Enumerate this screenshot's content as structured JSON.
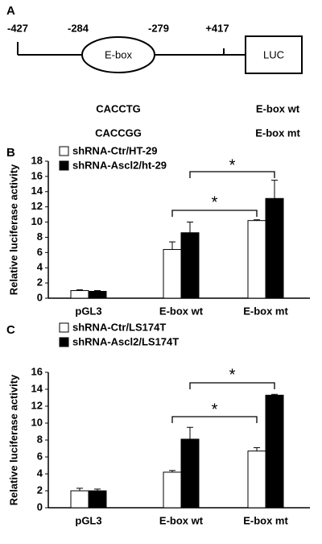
{
  "panel_a": {
    "label": "A",
    "positions": [
      "-427",
      "-284",
      "-279",
      "+417"
    ],
    "element": "E-box",
    "reporter": "LUC",
    "sequences": [
      "CACCTG",
      "CACCGG"
    ],
    "constructs": [
      "E-box wt",
      "E-box mt"
    ]
  },
  "chart_data": [
    {
      "type": "bar",
      "panel": "B",
      "y_label": "Relative luciferase activity",
      "categories": [
        "pGL3",
        "E-box wt",
        "E-box mt"
      ],
      "series": [
        {
          "name": "shRNA-Ctr/HT-29",
          "color": "#ffffff",
          "values": [
            1.0,
            6.4,
            10.2
          ],
          "errors": [
            0.1,
            1.0,
            0.1
          ]
        },
        {
          "name": "shRNA-Ascl2/ht-29",
          "color": "#000000",
          "values": [
            0.9,
            8.6,
            13.1
          ],
          "errors": [
            0.1,
            1.4,
            2.4
          ]
        }
      ],
      "annotations": [
        "*",
        "*"
      ],
      "ylim": [
        0,
        18
      ],
      "yticks": [
        0,
        2,
        4,
        6,
        8,
        10,
        12,
        14,
        16,
        18
      ]
    },
    {
      "type": "bar",
      "panel": "C",
      "y_label": "Relative luciferase activity",
      "categories": [
        "pGL3",
        "E-box wt",
        "E-box mt"
      ],
      "series": [
        {
          "name": "shRNA-Ctr/LS174T",
          "color": "#ffffff",
          "values": [
            2.0,
            4.2,
            6.7
          ],
          "errors": [
            0.3,
            0.2,
            0.4
          ]
        },
        {
          "name": "shRNA-Ascl2/LS174T",
          "color": "#000000",
          "values": [
            2.0,
            8.1,
            13.3
          ],
          "errors": [
            0.2,
            1.4,
            0.1
          ]
        }
      ],
      "annotations": [
        "*",
        "*"
      ],
      "ylim": [
        0,
        16
      ],
      "yticks": [
        0,
        2,
        4,
        6,
        8,
        10,
        12,
        14,
        16
      ]
    }
  ]
}
